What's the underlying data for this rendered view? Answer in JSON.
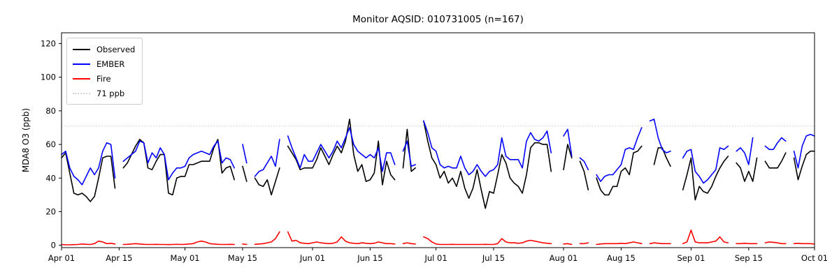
{
  "figure": {
    "title": "Monitor AQSID: 010731005 (n=167)",
    "ylabel": "MDA8 O3 (ppb)"
  },
  "legend": {
    "position": "upper left",
    "items": [
      {
        "id": "observed",
        "label": "Observed",
        "color": "#000000",
        "style": "solid"
      },
      {
        "id": "ember",
        "label": "EMBER",
        "color": "#0000ff",
        "style": "solid"
      },
      {
        "id": "fire",
        "label": "Fire",
        "color": "#ff0000",
        "style": "solid"
      },
      {
        "id": "threshold",
        "label": "71 ppb",
        "color": "#d3d3d3",
        "style": "dotted"
      }
    ]
  },
  "chart_data": {
    "type": "line",
    "title": "Monitor AQSID: 010731005 (n=167)",
    "xlabel": "",
    "ylabel": "MDA8 O3 (ppb)",
    "n_observations": 167,
    "x_unit": "daily values, day index 0 = Apr 01, day 183 = Oct 01; null = missing day",
    "ylim": [
      -1.4,
      126.3
    ],
    "yticks": [
      0,
      20,
      40,
      60,
      80,
      100,
      120
    ],
    "xticks": {
      "day_index": [
        0,
        14,
        30,
        44,
        61,
        75,
        91,
        105,
        122,
        136,
        153,
        167,
        183
      ],
      "labels": [
        "Apr 01",
        "Apr 15",
        "May 01",
        "May 15",
        "Jun 01",
        "Jun 15",
        "Jul 01",
        "Jul 15",
        "Aug 01",
        "Aug 15",
        "Sep 01",
        "Sep 15",
        "Oct 01"
      ]
    },
    "threshold": {
      "value": 71,
      "label": "71 ppb",
      "color": "#d3d3d3",
      "style": "dotted"
    },
    "grid": false,
    "legend_position": "upper left",
    "series": [
      {
        "name": "Observed",
        "color": "#000000",
        "values": [
          52,
          55,
          43,
          31,
          30,
          31,
          29,
          26,
          29,
          40,
          52,
          53,
          53,
          34,
          null,
          46,
          49,
          54,
          59,
          63,
          61,
          46,
          45,
          50,
          54,
          54,
          31,
          30,
          40,
          41,
          41,
          48,
          48,
          49,
          50,
          50,
          50,
          58,
          63,
          43,
          46,
          47,
          39,
          null,
          47,
          38,
          null,
          40,
          36,
          35,
          39,
          30,
          38,
          46,
          null,
          59,
          55,
          51,
          45,
          46,
          46,
          46,
          51,
          58,
          53,
          48,
          54,
          59,
          55,
          62,
          75,
          54,
          44,
          48,
          38,
          39,
          43,
          62,
          36,
          50,
          42,
          39,
          null,
          46,
          69,
          44,
          46,
          null,
          74,
          62,
          52,
          48,
          40,
          44,
          37,
          40,
          35,
          44,
          34,
          28,
          34,
          45,
          33,
          22,
          32,
          31,
          42,
          54,
          49,
          40,
          37,
          35,
          31,
          42,
          58,
          61,
          61,
          60,
          60,
          44,
          null,
          null,
          45,
          60,
          52,
          null,
          50,
          44,
          33,
          null,
          40,
          33,
          30,
          30,
          35,
          35,
          44,
          46,
          42,
          55,
          56,
          59,
          null,
          null,
          48,
          58,
          58,
          52,
          47,
          null,
          null,
          33,
          42,
          52,
          27,
          35,
          32,
          31,
          35,
          41,
          46,
          50,
          53,
          null,
          49,
          46,
          38,
          44,
          38,
          52,
          null,
          50,
          46,
          46,
          46,
          50,
          55,
          null,
          52,
          39,
          47,
          54,
          56,
          56
        ]
      },
      {
        "name": "EMBER",
        "color": "#0000ff",
        "values": [
          54,
          56,
          46,
          41,
          39,
          36,
          41,
          46,
          42,
          46,
          56,
          61,
          60,
          40,
          null,
          50,
          52,
          54,
          56,
          62,
          61,
          49,
          55,
          52,
          58,
          54,
          39,
          43,
          46,
          46,
          47,
          52,
          54,
          55,
          56,
          55,
          54,
          59,
          62,
          49,
          52,
          51,
          46,
          null,
          60,
          49,
          null,
          41,
          44,
          45,
          49,
          53,
          47,
          63,
          null,
          65,
          58,
          52,
          46,
          54,
          50,
          50,
          55,
          60,
          56,
          52,
          56,
          62,
          58,
          64,
          70,
          60,
          56,
          54,
          52,
          54,
          52,
          58,
          44,
          55,
          55,
          48,
          null,
          56,
          62,
          47,
          48,
          null,
          74,
          67,
          58,
          56,
          48,
          46,
          47,
          46,
          46,
          53,
          46,
          42,
          44,
          48,
          44,
          41,
          44,
          45,
          48,
          64,
          53,
          51,
          51,
          51,
          46,
          62,
          67,
          63,
          62,
          64,
          68,
          55,
          null,
          null,
          65,
          69,
          53,
          null,
          52,
          50,
          45,
          null,
          42,
          38,
          41,
          42,
          42,
          45,
          48,
          57,
          58,
          57,
          64,
          70,
          null,
          74,
          75,
          64,
          57,
          55,
          56,
          null,
          null,
          52,
          56,
          57,
          44,
          41,
          37,
          39,
          42,
          45,
          58,
          57,
          59,
          null,
          56,
          58,
          55,
          48,
          64,
          null,
          null,
          59,
          57,
          57,
          61,
          64,
          62,
          null,
          56,
          46,
          59,
          65,
          66,
          65
        ]
      },
      {
        "name": "Fire",
        "color": "#ff0000",
        "values": [
          0.5,
          0.3,
          0.3,
          0.4,
          0.5,
          0.8,
          0.6,
          0.5,
          1,
          2.5,
          2,
          1,
          1.2,
          0.8,
          null,
          0.5,
          0.6,
          0.8,
          1,
          0.8,
          0.6,
          0.5,
          0.5,
          0.6,
          0.5,
          0.5,
          0.4,
          0.5,
          0.6,
          0.5,
          0.6,
          0.8,
          1,
          2,
          2.5,
          2,
          1,
          0.8,
          0.6,
          0.5,
          0.5,
          0.6,
          0.5,
          null,
          0.8,
          0.5,
          null,
          0.6,
          0.8,
          1,
          1.5,
          2,
          4,
          8,
          null,
          8,
          2.5,
          3,
          1.5,
          1.2,
          1,
          1.5,
          2,
          1.5,
          1.2,
          1,
          1.2,
          2,
          5,
          2.5,
          1.5,
          1.2,
          1,
          1.5,
          1.2,
          1,
          1.2,
          2,
          1.5,
          1,
          1,
          0.8,
          null,
          1,
          1.5,
          1,
          0.8,
          null,
          5,
          4,
          2,
          0.8,
          0.5,
          0.5,
          0.5,
          0.6,
          0.5,
          0.5,
          0.5,
          0.5,
          0.5,
          0.5,
          0.5,
          0.6,
          0.5,
          0.5,
          1,
          4,
          2,
          1.5,
          1.5,
          1.2,
          1.5,
          2.5,
          3,
          2.5,
          2,
          1.5,
          1.2,
          1,
          null,
          null,
          0.8,
          1,
          0.5,
          null,
          1,
          1,
          1.5,
          null,
          0.5,
          0.8,
          1,
          1,
          1,
          1,
          1.2,
          1,
          1.5,
          2,
          1.5,
          1,
          null,
          1,
          1.5,
          1.2,
          1,
          1,
          1,
          null,
          null,
          1,
          2,
          9,
          2,
          1.5,
          1.5,
          1.5,
          2,
          2.5,
          5,
          2,
          1.5,
          null,
          1,
          1,
          1.2,
          1,
          1,
          1,
          null,
          1.5,
          2,
          1.8,
          1.5,
          1,
          1,
          null,
          1,
          1.2,
          1,
          1,
          1,
          0.8
        ]
      }
    ]
  }
}
